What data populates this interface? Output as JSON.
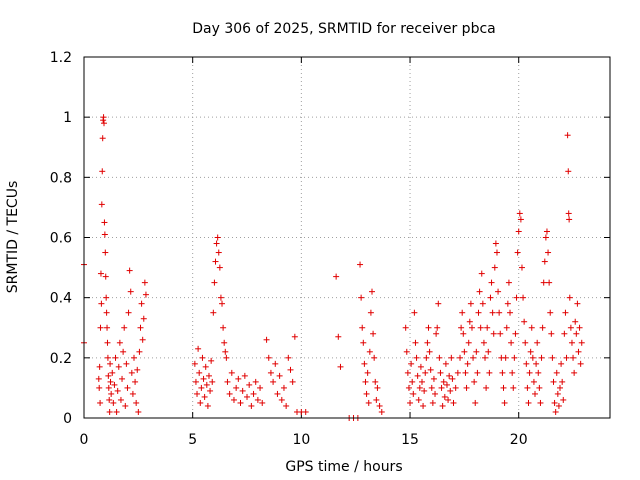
{
  "chart_data": {
    "type": "scatter",
    "title": "Day 306 of 2025, SRMTID for receiver pbca",
    "xlabel": "GPS time / hours",
    "ylabel": "SRMTID / TECUs",
    "xlim": [
      0,
      24.2
    ],
    "ylim": [
      0,
      1.2
    ],
    "x_ticks": [
      0,
      5,
      10,
      15,
      20
    ],
    "y_ticks": [
      0,
      0.2,
      0.4,
      0.6,
      0.8,
      1.0,
      1.2
    ],
    "x_tick_labels": [
      "0",
      "5",
      "10",
      "15",
      "20"
    ],
    "y_tick_labels": [
      "0",
      "0.2",
      "0.4",
      "0.6",
      "0.8",
      "1",
      "1.2"
    ],
    "grid": true,
    "marker": "+",
    "color": "#e00000",
    "series": [
      {
        "name": "SRMTID",
        "points": [
          [
            0.0,
            0.51
          ],
          [
            0.0,
            0.25
          ],
          [
            0.68,
            0.13
          ],
          [
            0.7,
            0.1
          ],
          [
            0.72,
            0.17
          ],
          [
            0.74,
            0.05
          ],
          [
            0.76,
            0.3
          ],
          [
            0.78,
            0.48
          ],
          [
            0.8,
            0.38
          ],
          [
            0.82,
            0.71
          ],
          [
            0.84,
            0.82
          ],
          [
            0.86,
            0.93
          ],
          [
            0.88,
            0.99
          ],
          [
            0.9,
            1.0
          ],
          [
            0.92,
            0.98
          ],
          [
            0.94,
            0.65
          ],
          [
            0.96,
            0.61
          ],
          [
            0.98,
            0.55
          ],
          [
            1.0,
            0.47
          ],
          [
            1.02,
            0.4
          ],
          [
            1.04,
            0.35
          ],
          [
            1.06,
            0.3
          ],
          [
            1.08,
            0.25
          ],
          [
            1.1,
            0.2
          ],
          [
            1.12,
            0.14
          ],
          [
            1.14,
            0.1
          ],
          [
            1.16,
            0.06
          ],
          [
            1.18,
            0.02
          ],
          [
            1.2,
            0.18
          ],
          [
            1.22,
            0.12
          ],
          [
            1.25,
            0.08
          ],
          [
            1.3,
            0.15
          ],
          [
            1.35,
            0.05
          ],
          [
            1.4,
            0.11
          ],
          [
            1.45,
            0.2
          ],
          [
            1.5,
            0.02
          ],
          [
            1.55,
            0.09
          ],
          [
            1.6,
            0.17
          ],
          [
            1.65,
            0.25
          ],
          [
            1.7,
            0.06
          ],
          [
            1.75,
            0.13
          ],
          [
            1.8,
            0.22
          ],
          [
            1.85,
            0.3
          ],
          [
            1.9,
            0.04
          ],
          [
            1.95,
            0.18
          ],
          [
            2.0,
            0.1
          ],
          [
            2.05,
            0.35
          ],
          [
            2.1,
            0.49
          ],
          [
            2.15,
            0.42
          ],
          [
            2.2,
            0.15
          ],
          [
            2.25,
            0.08
          ],
          [
            2.3,
            0.2
          ],
          [
            2.35,
            0.12
          ],
          [
            2.4,
            0.05
          ],
          [
            2.45,
            0.16
          ],
          [
            2.5,
            0.02
          ],
          [
            2.55,
            0.22
          ],
          [
            2.6,
            0.3
          ],
          [
            2.65,
            0.38
          ],
          [
            2.7,
            0.26
          ],
          [
            2.75,
            0.33
          ],
          [
            2.8,
            0.45
          ],
          [
            2.85,
            0.41
          ],
          [
            5.1,
            0.18
          ],
          [
            5.15,
            0.12
          ],
          [
            5.2,
            0.08
          ],
          [
            5.25,
            0.23
          ],
          [
            5.3,
            0.15
          ],
          [
            5.35,
            0.05
          ],
          [
            5.4,
            0.1
          ],
          [
            5.45,
            0.2
          ],
          [
            5.5,
            0.13
          ],
          [
            5.55,
            0.07
          ],
          [
            5.6,
            0.17
          ],
          [
            5.65,
            0.11
          ],
          [
            5.7,
            0.04
          ],
          [
            5.75,
            0.14
          ],
          [
            5.8,
            0.09
          ],
          [
            5.85,
            0.19
          ],
          [
            5.9,
            0.12
          ],
          [
            5.95,
            0.35
          ],
          [
            6.0,
            0.45
          ],
          [
            6.05,
            0.52
          ],
          [
            6.1,
            0.58
          ],
          [
            6.15,
            0.6
          ],
          [
            6.2,
            0.55
          ],
          [
            6.25,
            0.5
          ],
          [
            6.3,
            0.4
          ],
          [
            6.35,
            0.38
          ],
          [
            6.4,
            0.3
          ],
          [
            6.45,
            0.25
          ],
          [
            6.5,
            0.22
          ],
          [
            6.55,
            0.2
          ],
          [
            6.6,
            0.12
          ],
          [
            6.7,
            0.08
          ],
          [
            6.8,
            0.15
          ],
          [
            6.9,
            0.06
          ],
          [
            7.0,
            0.1
          ],
          [
            7.1,
            0.13
          ],
          [
            7.2,
            0.05
          ],
          [
            7.3,
            0.09
          ],
          [
            7.4,
            0.14
          ],
          [
            7.5,
            0.07
          ],
          [
            7.6,
            0.11
          ],
          [
            7.7,
            0.04
          ],
          [
            7.8,
            0.08
          ],
          [
            7.9,
            0.12
          ],
          [
            8.0,
            0.06
          ],
          [
            8.1,
            0.1
          ],
          [
            8.2,
            0.05
          ],
          [
            8.4,
            0.26
          ],
          [
            8.5,
            0.2
          ],
          [
            8.6,
            0.15
          ],
          [
            8.7,
            0.12
          ],
          [
            8.8,
            0.18
          ],
          [
            8.9,
            0.08
          ],
          [
            9.0,
            0.14
          ],
          [
            9.1,
            0.06
          ],
          [
            9.2,
            0.1
          ],
          [
            9.3,
            0.04
          ],
          [
            9.4,
            0.2
          ],
          [
            9.5,
            0.16
          ],
          [
            9.6,
            0.12
          ],
          [
            9.7,
            0.27
          ],
          [
            9.8,
            0.02
          ],
          [
            10.0,
            0.02
          ],
          [
            10.2,
            0.02
          ],
          [
            11.6,
            0.47
          ],
          [
            11.7,
            0.27
          ],
          [
            11.8,
            0.17
          ],
          [
            12.2,
            0.0
          ],
          [
            12.4,
            0.0
          ],
          [
            12.6,
            0.0
          ],
          [
            12.7,
            0.51
          ],
          [
            12.75,
            0.4
          ],
          [
            12.8,
            0.3
          ],
          [
            12.85,
            0.25
          ],
          [
            12.9,
            0.18
          ],
          [
            12.95,
            0.12
          ],
          [
            13.0,
            0.08
          ],
          [
            13.05,
            0.15
          ],
          [
            13.1,
            0.05
          ],
          [
            13.15,
            0.22
          ],
          [
            13.2,
            0.35
          ],
          [
            13.25,
            0.42
          ],
          [
            13.3,
            0.28
          ],
          [
            13.35,
            0.2
          ],
          [
            13.4,
            0.12
          ],
          [
            13.45,
            0.06
          ],
          [
            13.5,
            0.1
          ],
          [
            13.6,
            0.04
          ],
          [
            13.7,
            0.02
          ],
          [
            14.8,
            0.3
          ],
          [
            14.85,
            0.22
          ],
          [
            14.9,
            0.15
          ],
          [
            14.95,
            0.1
          ],
          [
            15.0,
            0.05
          ],
          [
            15.05,
            0.18
          ],
          [
            15.1,
            0.12
          ],
          [
            15.15,
            0.08
          ],
          [
            15.2,
            0.35
          ],
          [
            15.25,
            0.25
          ],
          [
            15.3,
            0.2
          ],
          [
            15.35,
            0.14
          ],
          [
            15.4,
            0.06
          ],
          [
            15.45,
            0.1
          ],
          [
            15.5,
            0.17
          ],
          [
            15.55,
            0.12
          ],
          [
            15.6,
            0.04
          ],
          [
            15.65,
            0.09
          ],
          [
            15.7,
            0.15
          ],
          [
            15.75,
            0.2
          ],
          [
            15.8,
            0.25
          ],
          [
            15.85,
            0.3
          ],
          [
            15.9,
            0.22
          ],
          [
            15.95,
            0.16
          ],
          [
            16.0,
            0.1
          ],
          [
            16.05,
            0.05
          ],
          [
            16.1,
            0.13
          ],
          [
            16.15,
            0.08
          ],
          [
            16.2,
            0.28
          ],
          [
            16.25,
            0.3
          ],
          [
            16.3,
            0.38
          ],
          [
            16.35,
            0.2
          ],
          [
            16.4,
            0.15
          ],
          [
            16.45,
            0.1
          ],
          [
            16.5,
            0.04
          ],
          [
            16.55,
            0.12
          ],
          [
            16.6,
            0.07
          ],
          [
            16.65,
            0.18
          ],
          [
            16.7,
            0.11
          ],
          [
            16.75,
            0.06
          ],
          [
            16.8,
            0.14
          ],
          [
            16.85,
            0.09
          ],
          [
            16.9,
            0.2
          ],
          [
            16.95,
            0.13
          ],
          [
            17.0,
            0.05
          ],
          [
            17.1,
            0.1
          ],
          [
            17.2,
            0.15
          ],
          [
            17.3,
            0.2
          ],
          [
            17.35,
            0.3
          ],
          [
            17.4,
            0.35
          ],
          [
            17.45,
            0.28
          ],
          [
            17.5,
            0.22
          ],
          [
            17.55,
            0.15
          ],
          [
            17.6,
            0.1
          ],
          [
            17.65,
            0.18
          ],
          [
            17.7,
            0.25
          ],
          [
            17.75,
            0.32
          ],
          [
            17.8,
            0.38
          ],
          [
            17.85,
            0.3
          ],
          [
            17.9,
            0.2
          ],
          [
            17.95,
            0.12
          ],
          [
            18.0,
            0.05
          ],
          [
            18.05,
            0.22
          ],
          [
            18.1,
            0.15
          ],
          [
            18.15,
            0.35
          ],
          [
            18.2,
            0.42
          ],
          [
            18.25,
            0.3
          ],
          [
            18.3,
            0.48
          ],
          [
            18.35,
            0.38
          ],
          [
            18.4,
            0.25
          ],
          [
            18.45,
            0.2
          ],
          [
            18.5,
            0.1
          ],
          [
            18.55,
            0.3
          ],
          [
            18.6,
            0.22
          ],
          [
            18.65,
            0.15
          ],
          [
            18.7,
            0.4
          ],
          [
            18.75,
            0.45
          ],
          [
            18.8,
            0.35
          ],
          [
            18.85,
            0.28
          ],
          [
            18.9,
            0.5
          ],
          [
            18.95,
            0.58
          ],
          [
            19.0,
            0.55
          ],
          [
            19.05,
            0.42
          ],
          [
            19.1,
            0.35
          ],
          [
            19.15,
            0.28
          ],
          [
            19.2,
            0.2
          ],
          [
            19.25,
            0.15
          ],
          [
            19.3,
            0.1
          ],
          [
            19.35,
            0.05
          ],
          [
            19.4,
            0.2
          ],
          [
            19.45,
            0.3
          ],
          [
            19.5,
            0.38
          ],
          [
            19.55,
            0.45
          ],
          [
            19.6,
            0.35
          ],
          [
            19.65,
            0.25
          ],
          [
            19.7,
            0.15
          ],
          [
            19.75,
            0.1
          ],
          [
            19.8,
            0.2
          ],
          [
            19.85,
            0.28
          ],
          [
            19.9,
            0.4
          ],
          [
            19.95,
            0.55
          ],
          [
            20.0,
            0.62
          ],
          [
            20.05,
            0.68
          ],
          [
            20.1,
            0.66
          ],
          [
            20.15,
            0.5
          ],
          [
            20.2,
            0.4
          ],
          [
            20.25,
            0.32
          ],
          [
            20.3,
            0.25
          ],
          [
            20.35,
            0.18
          ],
          [
            20.4,
            0.1
          ],
          [
            20.45,
            0.05
          ],
          [
            20.5,
            0.15
          ],
          [
            20.55,
            0.22
          ],
          [
            20.6,
            0.3
          ],
          [
            20.65,
            0.2
          ],
          [
            20.7,
            0.12
          ],
          [
            20.75,
            0.08
          ],
          [
            20.8,
            0.18
          ],
          [
            20.85,
            0.25
          ],
          [
            20.9,
            0.15
          ],
          [
            20.95,
            0.1
          ],
          [
            21.0,
            0.05
          ],
          [
            21.05,
            0.2
          ],
          [
            21.1,
            0.3
          ],
          [
            21.15,
            0.45
          ],
          [
            21.2,
            0.52
          ],
          [
            21.25,
            0.6
          ],
          [
            21.3,
            0.62
          ],
          [
            21.35,
            0.55
          ],
          [
            21.4,
            0.45
          ],
          [
            21.45,
            0.35
          ],
          [
            21.5,
            0.28
          ],
          [
            21.55,
            0.2
          ],
          [
            21.6,
            0.12
          ],
          [
            21.65,
            0.05
          ],
          [
            21.7,
            0.02
          ],
          [
            21.75,
            0.15
          ],
          [
            21.8,
            0.08
          ],
          [
            21.85,
            0.04
          ],
          [
            21.9,
            0.1
          ],
          [
            21.95,
            0.18
          ],
          [
            22.0,
            0.12
          ],
          [
            22.05,
            0.06
          ],
          [
            22.1,
            0.28
          ],
          [
            22.15,
            0.35
          ],
          [
            22.2,
            0.2
          ],
          [
            22.25,
            0.94
          ],
          [
            22.28,
            0.82
          ],
          [
            22.3,
            0.68
          ],
          [
            22.32,
            0.66
          ],
          [
            22.35,
            0.4
          ],
          [
            22.4,
            0.3
          ],
          [
            22.45,
            0.25
          ],
          [
            22.5,
            0.2
          ],
          [
            22.55,
            0.15
          ],
          [
            22.6,
            0.32
          ],
          [
            22.65,
            0.28
          ],
          [
            22.7,
            0.38
          ],
          [
            22.75,
            0.22
          ],
          [
            22.8,
            0.3
          ],
          [
            22.85,
            0.18
          ],
          [
            22.9,
            0.25
          ]
        ]
      }
    ]
  }
}
